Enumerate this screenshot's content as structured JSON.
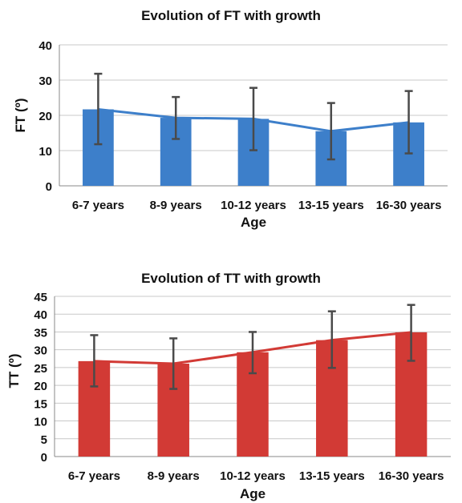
{
  "chart_data": [
    {
      "type": "bar",
      "title": "Evolution of FT with growth",
      "xlabel": "Age",
      "ylabel": "FT (º)",
      "categories": [
        "6-7 years",
        "8-9 years",
        "10-12 years",
        "13-15 years",
        "16-30 years"
      ],
      "values": [
        21.7,
        19.3,
        19.0,
        15.5,
        18.0
      ],
      "error_low": [
        11.8,
        13.3,
        10.1,
        7.5,
        9.2
      ],
      "error_high": [
        31.8,
        25.2,
        27.8,
        23.5,
        26.9
      ],
      "ylim": [
        0,
        40
      ],
      "yticks": [
        0,
        10,
        20,
        30,
        40
      ],
      "bar_color": "#3d7fca",
      "line_color": "#3d7fca",
      "grid": true,
      "overlay_line": true
    },
    {
      "type": "bar",
      "title": "Evolution of TT with growth",
      "xlabel": "Age",
      "ylabel": "TT (º)",
      "categories": [
        "6-7 years",
        "8-9 years",
        "10-12 years",
        "13-15 years",
        "16-30 years"
      ],
      "values": [
        26.8,
        26.1,
        29.3,
        32.7,
        34.9
      ],
      "error_low": [
        19.7,
        19.0,
        23.4,
        24.9,
        26.9
      ],
      "error_high": [
        34.1,
        33.2,
        35.0,
        40.8,
        42.6
      ],
      "ylim": [
        0,
        45
      ],
      "yticks": [
        0,
        5,
        10,
        15,
        20,
        25,
        30,
        35,
        40,
        45
      ],
      "bar_color": "#d23a35",
      "line_color": "#d23a35",
      "grid": true,
      "overlay_line": true
    }
  ]
}
